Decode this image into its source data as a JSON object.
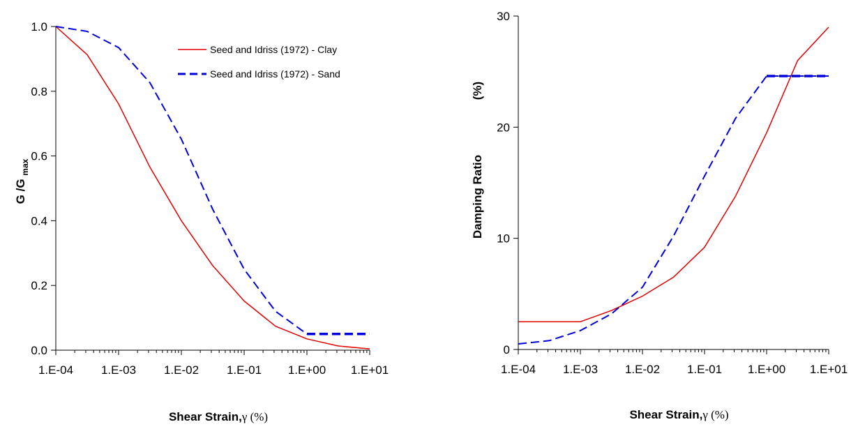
{
  "chart_data": [
    {
      "type": "line",
      "xscale": "log",
      "xlim": [
        0.0001,
        10
      ],
      "ylim": [
        0,
        1
      ],
      "grid": false,
      "legend_position": "top-right",
      "xlabel_main": "Shear Strain,",
      "xlabel_symbol": "γ (%)",
      "ylabel_main": "G /G",
      "ylabel_sub": "max",
      "x_tick_labels": [
        "1.E-04",
        "1.E-03",
        "1.E-02",
        "1.E-01",
        "1.E+00",
        "1.E+01"
      ],
      "y_tick_labels": [
        "0.0",
        "0.2",
        "0.4",
        "0.6",
        "0.8",
        "1.0"
      ],
      "y_ticks": [
        0,
        0.2,
        0.4,
        0.6,
        0.8,
        1.0
      ],
      "series": [
        {
          "name": "Seed and Idriss (1972) - Clay",
          "color": "#e00000",
          "style": "solid",
          "x": [
            0.0001,
            0.000316,
            0.001,
            0.00316,
            0.01,
            0.0316,
            0.1,
            0.316,
            1,
            3.16,
            10
          ],
          "y": [
            1.0,
            0.913,
            0.761,
            0.565,
            0.4,
            0.261,
            0.152,
            0.074,
            0.035,
            0.013,
            0.004
          ]
        },
        {
          "name": "Seed and Idriss (1972) - Sand",
          "color": "#0000dd",
          "style": "dashed",
          "x": [
            0.0001,
            0.000316,
            0.001,
            0.00316,
            0.01,
            0.0316,
            0.1,
            0.316,
            1,
            3.16,
            10
          ],
          "y": [
            1.0,
            0.985,
            0.935,
            0.826,
            0.652,
            0.435,
            0.25,
            0.12,
            0.05,
            0.05,
            0.05
          ]
        }
      ]
    },
    {
      "type": "line",
      "xscale": "log",
      "xlim": [
        0.0001,
        10
      ],
      "ylim": [
        0,
        30
      ],
      "grid": false,
      "xlabel_main": "Shear Strain,",
      "xlabel_symbol": "γ (%)",
      "ylabel_main": "Damping Ratio",
      "ylabel_unit": "(%)",
      "x_tick_labels": [
        "1.E-04",
        "1.E-03",
        "1.E-02",
        "1.E-01",
        "1.E+00",
        "1.E+01"
      ],
      "y_tick_labels": [
        "0",
        "10",
        "20",
        "30"
      ],
      "y_ticks": [
        0,
        10,
        20,
        30
      ],
      "series": [
        {
          "color": "#e00000",
          "style": "solid",
          "x": [
            0.0001,
            0.000316,
            0.001,
            0.00316,
            0.01,
            0.0316,
            0.1,
            0.316,
            1,
            3.16,
            10
          ],
          "y": [
            2.5,
            2.5,
            2.5,
            3.5,
            4.8,
            6.5,
            9.2,
            13.8,
            19.5,
            26.0,
            29.0
          ]
        },
        {
          "color": "#0000dd",
          "style": "dashed",
          "x": [
            0.0001,
            0.000316,
            0.001,
            0.00316,
            0.01,
            0.0316,
            0.1,
            0.316,
            1,
            3.16,
            10
          ],
          "y": [
            0.5,
            0.8,
            1.7,
            3.2,
            5.6,
            10.2,
            15.6,
            20.8,
            24.6,
            24.6,
            24.6
          ]
        }
      ]
    }
  ]
}
